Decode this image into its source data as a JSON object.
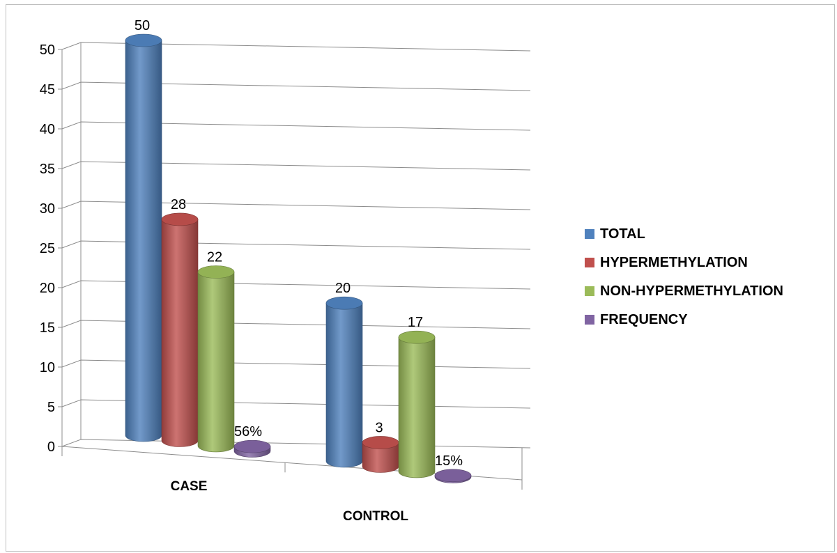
{
  "chart_data": {
    "type": "bar",
    "categories": [
      "CASE",
      "CONTROL"
    ],
    "series": [
      {
        "name": "TOTAL",
        "values": [
          50,
          20
        ],
        "labels": [
          "50",
          "20"
        ],
        "color": "#4F81BD"
      },
      {
        "name": "HYPERMETHYLATION",
        "values": [
          28,
          3
        ],
        "labels": [
          "28",
          "3"
        ],
        "color": "#C0504D"
      },
      {
        "name": "NON-HYPERMETHYLATION",
        "values": [
          22,
          17
        ],
        "labels": [
          "22",
          "17"
        ],
        "color": "#9BBB59"
      },
      {
        "name": "FREQUENCY",
        "values": [
          0.56,
          0.15
        ],
        "labels": [
          "56%",
          "15%"
        ],
        "color": "#8064A2"
      }
    ],
    "y_ticks": [
      "0",
      "5",
      "10",
      "15",
      "20",
      "25",
      "30",
      "35",
      "40",
      "45",
      "50"
    ],
    "ylim": [
      0,
      50
    ],
    "grid": true,
    "legend_position": "right",
    "style": "3d-cylinder"
  }
}
